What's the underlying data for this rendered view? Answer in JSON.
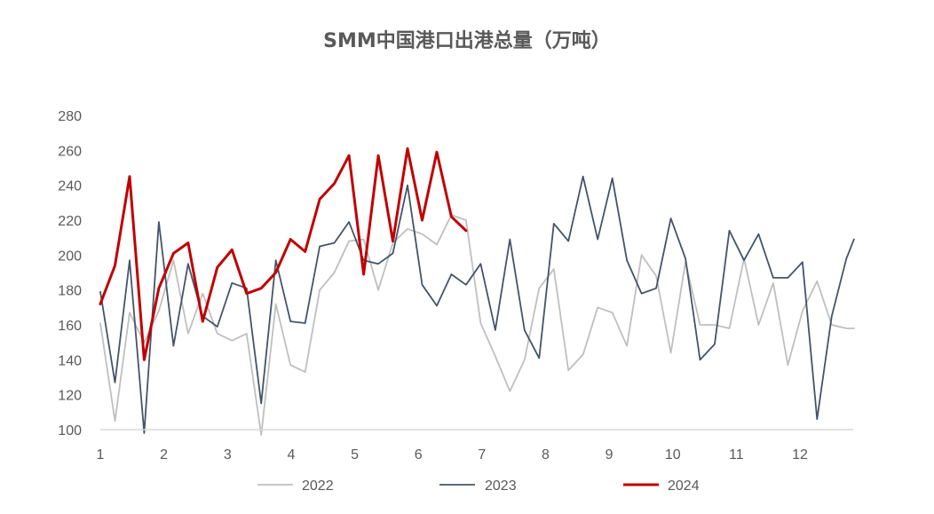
{
  "chart_data": {
    "type": "line",
    "title": "SMM中国港口出港总量（万吨）",
    "xlabel": "",
    "ylabel": "",
    "ylim": [
      100,
      280
    ],
    "yticks": [
      100,
      120,
      140,
      160,
      180,
      200,
      220,
      240,
      260,
      280
    ],
    "xlim": [
      1,
      12.85
    ],
    "xticks": [
      "1",
      "2",
      "3",
      "4",
      "5",
      "6",
      "7",
      "8",
      "9",
      "10",
      "11",
      "12"
    ],
    "grid": false,
    "legend_position": "bottom",
    "series": [
      {
        "name": "2022",
        "color": "#bfbfbf",
        "width": 1.8,
        "x": [
          1.0,
          1.23,
          1.46,
          1.69,
          1.92,
          2.15,
          2.38,
          2.61,
          2.84,
          3.07,
          3.3,
          3.53,
          3.76,
          3.99,
          4.22,
          4.45,
          4.68,
          4.91,
          5.14,
          5.37,
          5.6,
          5.83,
          6.06,
          6.29,
          6.52,
          6.75,
          6.98,
          7.21,
          7.44,
          7.67,
          7.9,
          8.13,
          8.36,
          8.59,
          8.82,
          9.05,
          9.28,
          9.51,
          9.74,
          9.97,
          10.2,
          10.43,
          10.66,
          10.89,
          11.12,
          11.35,
          11.58,
          11.81,
          12.04,
          12.27,
          12.5,
          12.73,
          12.85
        ],
        "values": [
          161,
          105,
          167,
          150,
          168,
          197,
          155,
          178,
          155,
          151,
          155,
          97,
          172,
          137,
          133,
          180,
          190,
          208,
          209,
          180,
          207,
          215,
          212,
          206,
          223,
          220,
          161,
          142,
          122,
          140,
          181,
          192,
          134,
          143,
          170,
          167,
          148,
          200,
          188,
          144,
          196,
          160,
          160,
          158,
          198,
          160,
          184,
          137,
          168,
          185,
          160,
          158,
          158
        ]
      },
      {
        "name": "2023",
        "color": "#44546a",
        "width": 1.8,
        "x": [
          1.0,
          1.23,
          1.46,
          1.69,
          1.92,
          2.15,
          2.38,
          2.61,
          2.84,
          3.07,
          3.3,
          3.53,
          3.76,
          3.99,
          4.22,
          4.45,
          4.68,
          4.91,
          5.14,
          5.37,
          5.6,
          5.83,
          6.06,
          6.29,
          6.52,
          6.75,
          6.98,
          7.21,
          7.44,
          7.67,
          7.9,
          8.13,
          8.36,
          8.59,
          8.82,
          9.05,
          9.28,
          9.51,
          9.74,
          9.97,
          10.2,
          10.43,
          10.66,
          10.89,
          11.12,
          11.35,
          11.58,
          11.81,
          12.04,
          12.27,
          12.5,
          12.73,
          12.85
        ],
        "values": [
          179,
          127,
          197,
          98,
          219,
          148,
          195,
          165,
          159,
          184,
          181,
          115,
          197,
          162,
          161,
          205,
          207,
          219,
          197,
          195,
          201,
          240,
          183,
          171,
          189,
          183,
          195,
          157,
          209,
          157,
          141,
          218,
          208,
          245,
          209,
          244,
          197,
          178,
          181,
          221,
          198,
          140,
          149,
          214,
          197,
          212,
          187,
          187,
          196,
          106,
          165,
          198,
          209
        ]
      },
      {
        "name": "2024",
        "color": "#c00000",
        "width": 3,
        "x": [
          1.0,
          1.23,
          1.46,
          1.69,
          1.92,
          2.15,
          2.38,
          2.61,
          2.84,
          3.07,
          3.3,
          3.53,
          3.76,
          3.99,
          4.22,
          4.45,
          4.68,
          4.91,
          5.14,
          5.37,
          5.6,
          5.83,
          6.06,
          6.29,
          6.52,
          6.75
        ],
        "values": [
          172,
          194,
          245,
          140,
          181,
          201,
          207,
          162,
          193,
          203,
          178,
          181,
          190,
          209,
          202,
          232,
          241,
          257,
          189,
          257,
          208,
          261,
          220,
          259,
          222,
          214
        ]
      }
    ]
  }
}
